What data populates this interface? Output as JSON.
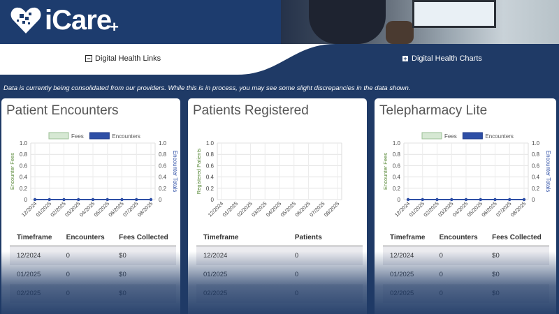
{
  "brand": {
    "name": "iCare",
    "plus": "+"
  },
  "nav": {
    "links": {
      "icon": "−",
      "label": "Digital Health Links"
    },
    "charts": {
      "icon": "+",
      "label": "Digital Health Charts"
    }
  },
  "notice": "Data is currently being consolidated from our providers. While this is in process, you may see some slight discrepancies in the data shown.",
  "colors": {
    "header": "#1d3c6e",
    "fees": "#d6e8d3",
    "encounters": "#2e4fa6",
    "left_axis_label": "#5a8a3a"
  },
  "cards": [
    {
      "title": "Patient Encounters",
      "chart_data": {
        "type": "line",
        "categories": [
          "12/2024",
          "01/2025",
          "02/2025",
          "03/2025",
          "04/2025",
          "05/2025",
          "06/2025",
          "07/2025",
          "08/2025"
        ],
        "series": [
          {
            "name": "Fees",
            "values": [
              0,
              0,
              0,
              0,
              0,
              0,
              0,
              0,
              0
            ]
          },
          {
            "name": "Encounters",
            "values": [
              0,
              0,
              0,
              0,
              0,
              0,
              0,
              0,
              0
            ]
          }
        ],
        "ylabel": "Encounter Fees",
        "y2label": "Encounter Totals",
        "ylim": [
          0,
          1.0
        ],
        "yticks": [
          "0",
          "0.2",
          "0.4",
          "0.6",
          "0.8",
          "1.0"
        ],
        "y2ticks": [
          "0",
          "0.2",
          "0.4",
          "0.6",
          "0.8",
          "1.0"
        ],
        "legend": "top-center",
        "grid": true
      },
      "table": {
        "headers": [
          "Timeframe",
          "Encounters",
          "Fees Collected"
        ],
        "rows": [
          [
            "12/2024",
            "0",
            "$0"
          ],
          [
            "01/2025",
            "0",
            "$0"
          ],
          [
            "02/2025",
            "0",
            "$0"
          ]
        ]
      }
    },
    {
      "title": "Patients Registered",
      "chart_data": {
        "type": "line",
        "categories": [
          "12/2024",
          "01/2025",
          "02/2025",
          "03/2025",
          "04/2025",
          "05/2025",
          "06/2025",
          "07/2025",
          "08/2025"
        ],
        "series": [],
        "ylabel": "Registered Patients",
        "ylim": [
          0,
          1.0
        ],
        "yticks": [
          "0",
          "0.2",
          "0.4",
          "0.6",
          "0.8",
          "1.0"
        ],
        "grid": true
      },
      "table": {
        "headers": [
          "Timeframe",
          "Patients"
        ],
        "rows": [
          [
            "12/2024",
            "0"
          ],
          [
            "01/2025",
            "0"
          ],
          [
            "02/2025",
            "0"
          ]
        ]
      }
    },
    {
      "title": "Telepharmacy Lite",
      "chart_data": {
        "type": "line",
        "categories": [
          "12/2024",
          "01/2025",
          "02/2025",
          "03/2025",
          "04/2025",
          "05/2025",
          "06/2025",
          "07/2025",
          "08/2025"
        ],
        "series": [
          {
            "name": "Fees",
            "values": [
              0,
              0,
              0,
              0,
              0,
              0,
              0,
              0,
              0
            ]
          },
          {
            "name": "Encounters",
            "values": [
              0,
              0,
              0,
              0,
              0,
              0,
              0,
              0,
              0
            ]
          }
        ],
        "ylabel": "Encounter Fees",
        "y2label": "Encounter Totals",
        "ylim": [
          0,
          1.0
        ],
        "yticks": [
          "0",
          "0.2",
          "0.4",
          "0.6",
          "0.8",
          "1.0"
        ],
        "y2ticks": [
          "0",
          "0.2",
          "0.4",
          "0.6",
          "0.8",
          "1.0"
        ],
        "legend": "top-center",
        "grid": true
      },
      "table": {
        "headers": [
          "Timeframe",
          "Encounters",
          "Fees Collected"
        ],
        "rows": [
          [
            "12/2024",
            "0",
            "$0"
          ],
          [
            "01/2025",
            "0",
            "$0"
          ],
          [
            "02/2025",
            "0",
            "$0"
          ]
        ]
      }
    }
  ]
}
